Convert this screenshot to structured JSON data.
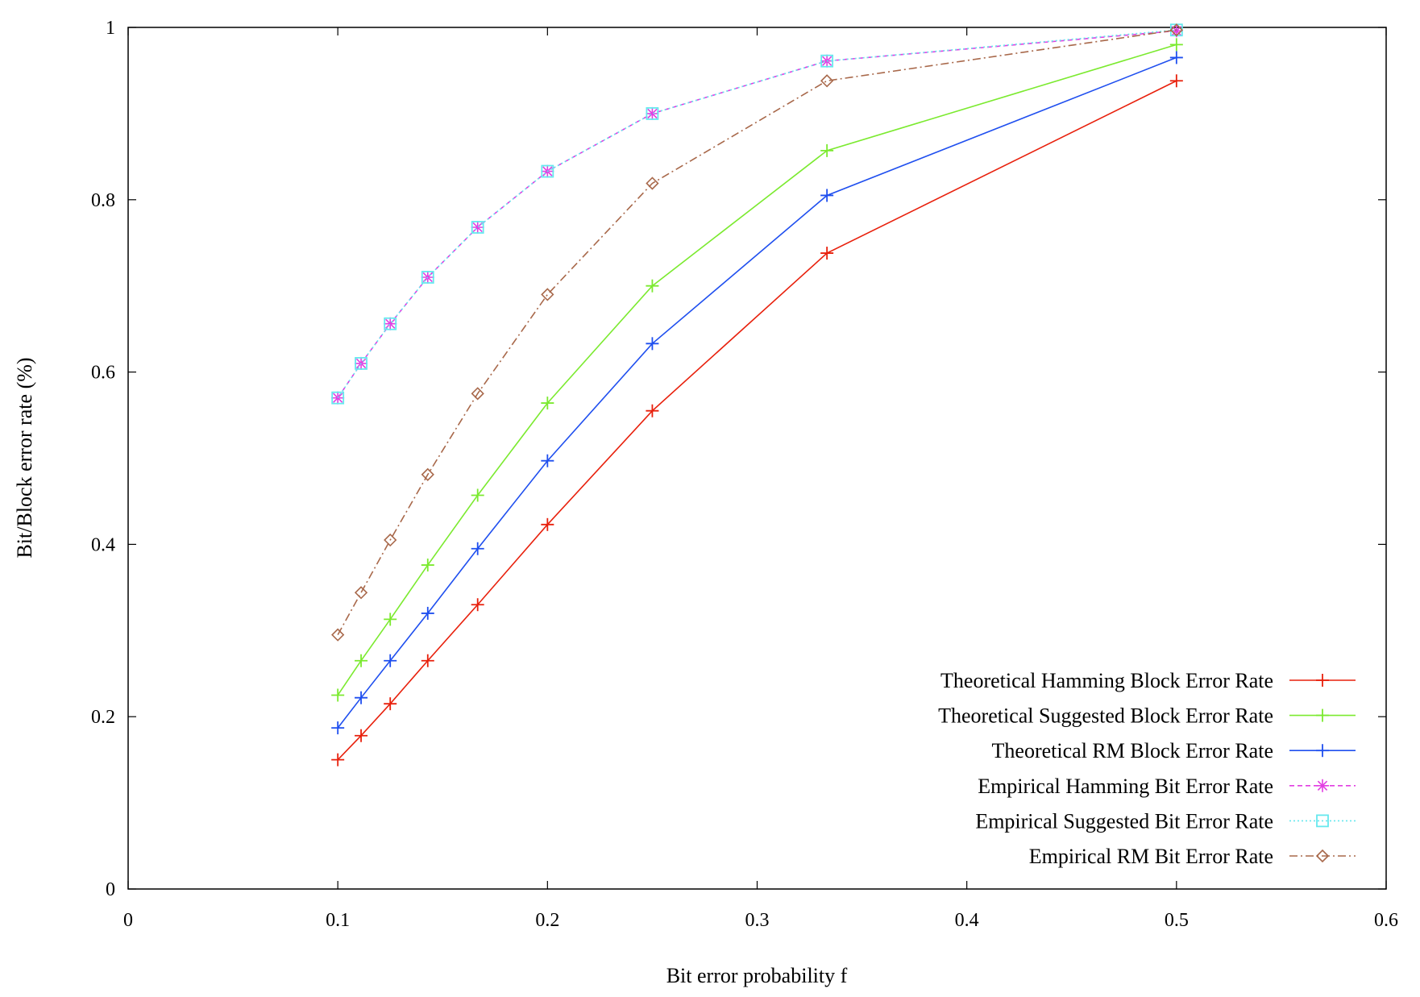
{
  "chart_data": {
    "type": "line",
    "title": "",
    "xlabel": "Bit error probability f",
    "ylabel": "Bit/Block error rate (%)",
    "xlim": [
      0,
      0.6
    ],
    "ylim": [
      0,
      1
    ],
    "xticks": [
      0,
      0.1,
      0.2,
      0.3,
      0.4,
      0.5,
      0.6
    ],
    "yticks": [
      0,
      0.2,
      0.4,
      0.6,
      0.8,
      1
    ],
    "xtick_labels": [
      "0",
      "0.1",
      "0.2",
      "0.3",
      "0.4",
      "0.5",
      "0.6"
    ],
    "ytick_labels": [
      "0",
      "0.2",
      "0.4",
      "0.6",
      "0.8",
      "1"
    ],
    "grid": false,
    "legend_position": "bottom-right",
    "series": [
      {
        "name": "Theoretical Hamming Block Error Rate",
        "color": "#e8200c",
        "marker": "plus",
        "dash": "solid",
        "x": [
          0.1,
          0.1111,
          0.125,
          0.1429,
          0.1667,
          0.2,
          0.25,
          0.3333,
          0.5
        ],
        "y": [
          0.15,
          0.178,
          0.215,
          0.265,
          0.33,
          0.423,
          0.555,
          0.738,
          0.938
        ]
      },
      {
        "name": "Theoretical Suggested Block Error Rate",
        "color": "#7bea2f",
        "marker": "plus",
        "dash": "solid",
        "x": [
          0.1,
          0.1111,
          0.125,
          0.1429,
          0.1667,
          0.2,
          0.25,
          0.3333,
          0.5
        ],
        "y": [
          0.225,
          0.265,
          0.313,
          0.376,
          0.457,
          0.564,
          0.7,
          0.857,
          0.98
        ]
      },
      {
        "name": "Theoretical RM Block Error Rate",
        "color": "#1f4fef",
        "marker": "plus",
        "dash": "solid",
        "x": [
          0.1,
          0.1111,
          0.125,
          0.1429,
          0.1667,
          0.2,
          0.25,
          0.3333,
          0.5
        ],
        "y": [
          0.187,
          0.222,
          0.265,
          0.32,
          0.395,
          0.497,
          0.633,
          0.805,
          0.965
        ]
      },
      {
        "name": "Empirical Hamming Bit Error Rate",
        "color": "#e23ee2",
        "marker": "star",
        "dash": "dashed",
        "x": [
          0.1,
          0.1111,
          0.125,
          0.1429,
          0.1667,
          0.2,
          0.25,
          0.3333,
          0.5
        ],
        "y": [
          0.57,
          0.61,
          0.656,
          0.71,
          0.768,
          0.833,
          0.9,
          0.961,
          0.996
        ]
      },
      {
        "name": "Empirical Suggested Bit Error Rate",
        "color": "#66e8ee",
        "marker": "square",
        "dash": "dotted",
        "x": [
          0.1,
          0.1111,
          0.125,
          0.1429,
          0.1667,
          0.2,
          0.25,
          0.3333,
          0.5
        ],
        "y": [
          0.57,
          0.61,
          0.656,
          0.71,
          0.768,
          0.833,
          0.9,
          0.961,
          0.997
        ]
      },
      {
        "name": "Empirical RM Bit Error Rate",
        "color": "#a8684a",
        "marker": "diamond",
        "dash": "dashdot",
        "x": [
          0.1,
          0.1111,
          0.125,
          0.1429,
          0.1667,
          0.2,
          0.25,
          0.3333,
          0.5
        ],
        "y": [
          0.295,
          0.344,
          0.405,
          0.481,
          0.575,
          0.69,
          0.819,
          0.938,
          0.997
        ]
      }
    ]
  }
}
